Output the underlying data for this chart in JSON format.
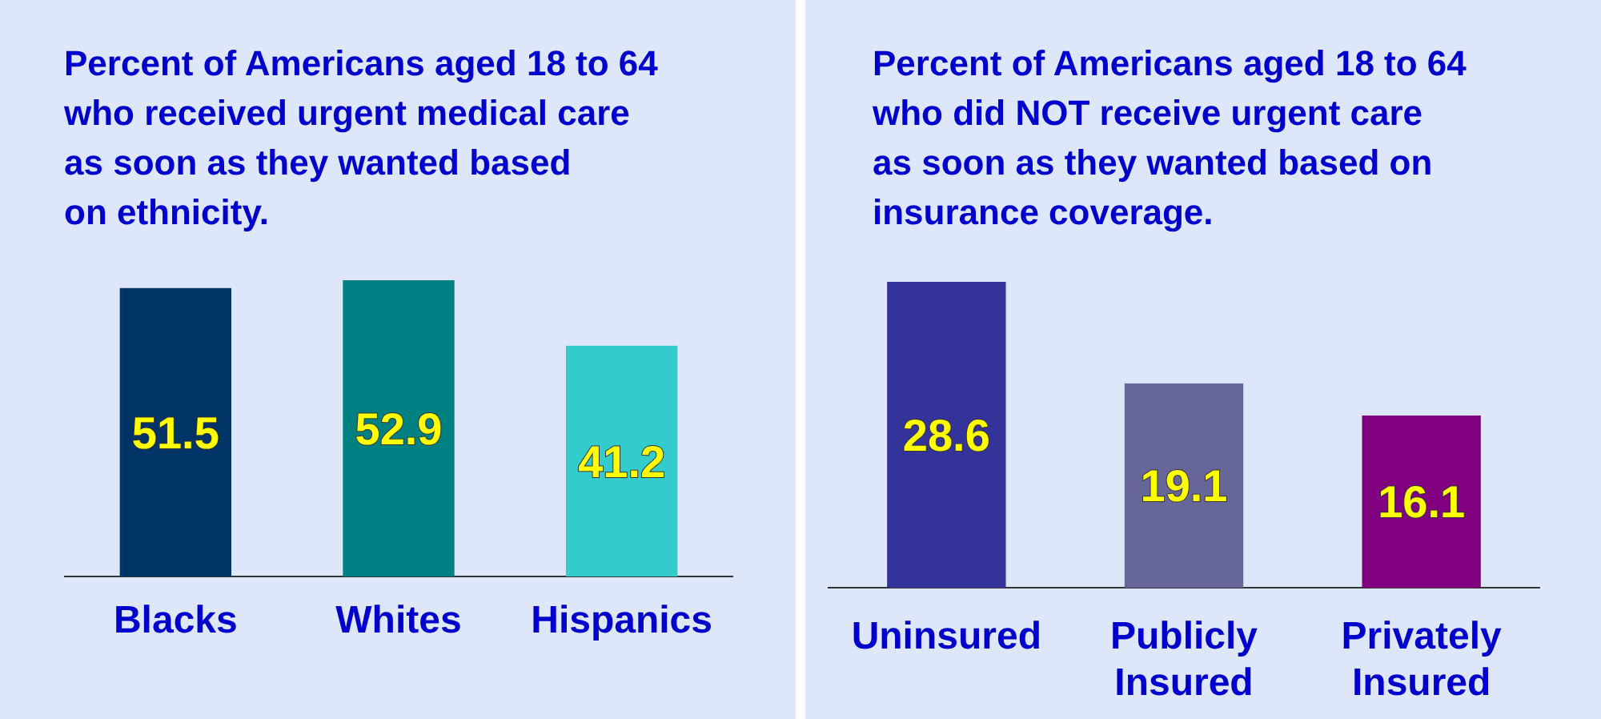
{
  "chart_data": [
    {
      "type": "bar",
      "title": "Percent of Americans aged 18 to 64\nwho received urgent medical care\nas soon as they wanted based\non ethnicity.",
      "categories": [
        "Blacks",
        "Whites",
        "Hispanics"
      ],
      "values": [
        51.5,
        52.9,
        41.2
      ],
      "colors": [
        "#003366",
        "#008080",
        "#33cccc"
      ],
      "data_labels": true
    },
    {
      "type": "bar",
      "title": "Percent of Americans aged 18 to 64\nwho did NOT receive urgent care\nas soon as they wanted based on\ninsurance coverage.",
      "categories": [
        "Uninsured",
        "Publicly Insured",
        "Privately Insured"
      ],
      "values": [
        28.6,
        19.1,
        16.1
      ],
      "colors": [
        "#333399",
        "#666699",
        "#800080"
      ],
      "data_labels": true
    }
  ]
}
